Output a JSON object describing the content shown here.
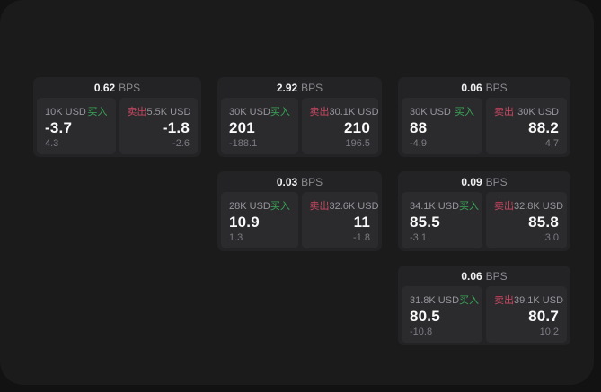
{
  "theme": {
    "bg": "#1b1b1c",
    "card": "#232325",
    "tile": "#2b2b2e",
    "buy": "#3aa657",
    "sell": "#c9475f"
  },
  "labels": {
    "unit": "BPS",
    "buy": "买入",
    "sell": "卖出"
  },
  "cards": [
    {
      "bps": "0.62",
      "buy": {
        "amount": "10K USD",
        "value": "-3.7",
        "sub": "4.3"
      },
      "sell": {
        "amount": "5.5K USD",
        "value": "-1.8",
        "sub": "-2.6"
      }
    },
    {
      "bps": "2.92",
      "buy": {
        "amount": "30K USD",
        "value": "201",
        "sub": "-188.1"
      },
      "sell": {
        "amount": "30.1K USD",
        "value": "210",
        "sub": "196.5"
      }
    },
    {
      "bps": "0.06",
      "buy": {
        "amount": "30K USD",
        "value": "88",
        "sub": "-4.9"
      },
      "sell": {
        "amount": "30K USD",
        "value": "88.2",
        "sub": "4.7"
      }
    },
    {
      "bps": "0.03",
      "buy": {
        "amount": "28K USD",
        "value": "10.9",
        "sub": "1.3"
      },
      "sell": {
        "amount": "32.6K USD",
        "value": "11",
        "sub": "-1.8"
      }
    },
    {
      "bps": "0.09",
      "buy": {
        "amount": "34.1K USD",
        "value": "85.5",
        "sub": "-3.1"
      },
      "sell": {
        "amount": "32.8K USD",
        "value": "85.8",
        "sub": "3.0"
      }
    },
    {
      "bps": "0.06",
      "buy": {
        "amount": "31.8K USD",
        "value": "80.5",
        "sub": "-10.8"
      },
      "sell": {
        "amount": "39.1K USD",
        "value": "80.7",
        "sub": "10.2"
      }
    }
  ]
}
